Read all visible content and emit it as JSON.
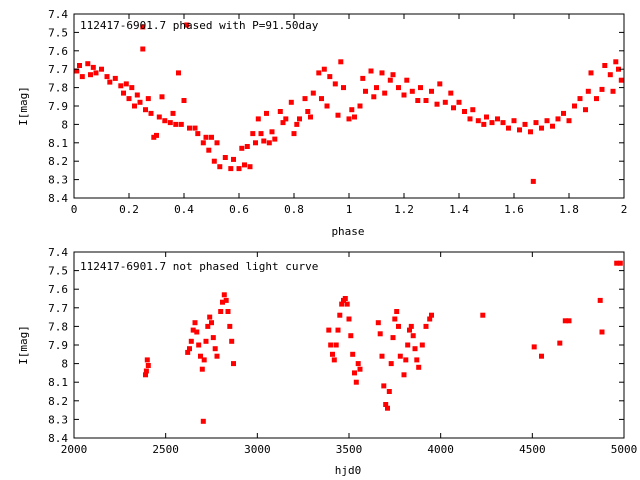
{
  "chart_data": [
    {
      "type": "scatter",
      "title": "112417-6901.7 phased with P=91.50day",
      "xlabel": "phase",
      "ylabel": "I[mag]",
      "xlim": [
        0,
        2
      ],
      "ylim": [
        8.4,
        7.4
      ],
      "y_inverted": true,
      "x_ticks": [
        "0",
        "0.2",
        "0.4",
        "0.6",
        "0.8",
        "1",
        "1.2",
        "1.4",
        "1.6",
        "1.8",
        "2"
      ],
      "y_ticks": [
        "7.4",
        "7.5",
        "7.6",
        "7.7",
        "7.8",
        "7.9",
        "8",
        "8.1",
        "8.2",
        "8.3",
        "8.4"
      ],
      "marker_color": "#ff0000",
      "series": [
        {
          "points": [
            [
              0.01,
              7.71
            ],
            [
              0.02,
              7.68
            ],
            [
              0.03,
              7.74
            ],
            [
              0.05,
              7.67
            ],
            [
              0.06,
              7.73
            ],
            [
              0.07,
              7.69
            ],
            [
              0.08,
              7.72
            ],
            [
              0.1,
              7.7
            ],
            [
              0.12,
              7.74
            ],
            [
              0.13,
              7.77
            ],
            [
              0.15,
              7.75
            ],
            [
              0.17,
              7.79
            ],
            [
              0.18,
              7.83
            ],
            [
              0.19,
              7.78
            ],
            [
              0.2,
              7.86
            ],
            [
              0.21,
              7.8
            ],
            [
              0.22,
              7.9
            ],
            [
              0.23,
              7.84
            ],
            [
              0.24,
              7.88
            ],
            [
              0.25,
              7.59
            ],
            [
              0.25,
              7.47
            ],
            [
              0.26,
              7.92
            ],
            [
              0.27,
              7.86
            ],
            [
              0.28,
              7.94
            ],
            [
              0.29,
              8.07
            ],
            [
              0.3,
              8.06
            ],
            [
              0.31,
              7.96
            ],
            [
              0.32,
              7.85
            ],
            [
              0.33,
              7.98
            ],
            [
              0.35,
              7.99
            ],
            [
              0.36,
              7.94
            ],
            [
              0.37,
              8.0
            ],
            [
              0.38,
              7.72
            ],
            [
              0.39,
              8.0
            ],
            [
              0.4,
              7.87
            ],
            [
              0.41,
              7.46
            ],
            [
              0.42,
              8.02
            ],
            [
              0.44,
              8.02
            ],
            [
              0.45,
              8.05
            ],
            [
              0.47,
              8.1
            ],
            [
              0.48,
              8.07
            ],
            [
              0.49,
              8.14
            ],
            [
              0.5,
              8.07
            ],
            [
              0.51,
              8.2
            ],
            [
              0.52,
              8.1
            ],
            [
              0.53,
              8.23
            ],
            [
              0.55,
              8.18
            ],
            [
              0.57,
              8.24
            ],
            [
              0.58,
              8.19
            ],
            [
              0.6,
              8.24
            ],
            [
              0.61,
              8.13
            ],
            [
              0.62,
              8.22
            ],
            [
              0.63,
              8.12
            ],
            [
              0.64,
              8.23
            ],
            [
              0.65,
              8.05
            ],
            [
              0.66,
              8.1
            ],
            [
              0.67,
              7.97
            ],
            [
              0.68,
              8.05
            ],
            [
              0.69,
              8.09
            ],
            [
              0.7,
              7.94
            ],
            [
              0.71,
              8.1
            ],
            [
              0.72,
              8.04
            ],
            [
              0.73,
              8.08
            ],
            [
              0.75,
              7.93
            ],
            [
              0.76,
              7.99
            ],
            [
              0.77,
              7.97
            ],
            [
              0.79,
              7.88
            ],
            [
              0.8,
              8.05
            ],
            [
              0.81,
              8.0
            ],
            [
              0.82,
              7.97
            ],
            [
              0.84,
              7.86
            ],
            [
              0.85,
              7.93
            ],
            [
              0.86,
              7.96
            ],
            [
              0.87,
              7.83
            ],
            [
              0.89,
              7.72
            ],
            [
              0.9,
              7.86
            ],
            [
              0.91,
              7.7
            ],
            [
              0.92,
              7.9
            ],
            [
              0.93,
              7.74
            ],
            [
              0.95,
              7.78
            ],
            [
              0.96,
              7.95
            ],
            [
              0.97,
              7.66
            ],
            [
              0.98,
              7.8
            ],
            [
              1.0,
              7.97
            ],
            [
              1.01,
              7.92
            ],
            [
              1.02,
              7.96
            ],
            [
              1.04,
              7.9
            ],
            [
              1.05,
              7.75
            ],
            [
              1.06,
              7.82
            ],
            [
              1.08,
              7.71
            ],
            [
              1.09,
              7.85
            ],
            [
              1.1,
              7.8
            ],
            [
              1.12,
              7.72
            ],
            [
              1.13,
              7.83
            ],
            [
              1.15,
              7.76
            ],
            [
              1.16,
              7.73
            ],
            [
              1.18,
              7.8
            ],
            [
              1.2,
              7.84
            ],
            [
              1.21,
              7.76
            ],
            [
              1.23,
              7.82
            ],
            [
              1.25,
              7.87
            ],
            [
              1.26,
              7.8
            ],
            [
              1.28,
              7.87
            ],
            [
              1.3,
              7.82
            ],
            [
              1.32,
              7.89
            ],
            [
              1.33,
              7.78
            ],
            [
              1.35,
              7.88
            ],
            [
              1.37,
              7.83
            ],
            [
              1.38,
              7.91
            ],
            [
              1.4,
              7.88
            ],
            [
              1.42,
              7.93
            ],
            [
              1.44,
              7.97
            ],
            [
              1.45,
              7.92
            ],
            [
              1.47,
              7.98
            ],
            [
              1.49,
              8.0
            ],
            [
              1.5,
              7.96
            ],
            [
              1.52,
              7.99
            ],
            [
              1.54,
              7.97
            ],
            [
              1.56,
              7.99
            ],
            [
              1.58,
              8.02
            ],
            [
              1.6,
              7.98
            ],
            [
              1.62,
              8.03
            ],
            [
              1.64,
              8.0
            ],
            [
              1.66,
              8.04
            ],
            [
              1.67,
              8.31
            ],
            [
              1.68,
              7.99
            ],
            [
              1.7,
              8.02
            ],
            [
              1.72,
              7.98
            ],
            [
              1.74,
              8.01
            ],
            [
              1.76,
              7.97
            ],
            [
              1.78,
              7.94
            ],
            [
              1.8,
              7.98
            ],
            [
              1.82,
              7.9
            ],
            [
              1.84,
              7.86
            ],
            [
              1.86,
              7.92
            ],
            [
              1.87,
              7.82
            ],
            [
              1.88,
              7.72
            ],
            [
              1.9,
              7.86
            ],
            [
              1.92,
              7.81
            ],
            [
              1.93,
              7.68
            ],
            [
              1.95,
              7.73
            ],
            [
              1.96,
              7.82
            ],
            [
              1.97,
              7.66
            ],
            [
              1.98,
              7.7
            ],
            [
              1.99,
              7.76
            ]
          ]
        }
      ]
    },
    {
      "type": "scatter",
      "title": "112417-6901.7 not phased light curve",
      "xlabel": "hjd0",
      "ylabel": "I[mag]",
      "xlim": [
        2000,
        5000
      ],
      "ylim": [
        8.4,
        7.4
      ],
      "y_inverted": true,
      "x_ticks": [
        "2000",
        "2500",
        "3000",
        "3500",
        "4000",
        "4500",
        "5000"
      ],
      "y_ticks": [
        "7.4",
        "7.5",
        "7.6",
        "7.7",
        "7.8",
        "7.9",
        "8",
        "8.1",
        "8.2",
        "8.3",
        "8.4"
      ],
      "marker_color": "#ff0000",
      "series": [
        {
          "points": [
            [
              2390,
              8.06
            ],
            [
              2395,
              8.04
            ],
            [
              2400,
              7.98
            ],
            [
              2405,
              8.01
            ],
            [
              2620,
              7.94
            ],
            [
              2630,
              7.92
            ],
            [
              2640,
              7.88
            ],
            [
              2650,
              7.82
            ],
            [
              2660,
              7.78
            ],
            [
              2670,
              7.83
            ],
            [
              2680,
              7.9
            ],
            [
              2690,
              7.96
            ],
            [
              2700,
              8.03
            ],
            [
              2705,
              8.31
            ],
            [
              2710,
              7.98
            ],
            [
              2720,
              7.88
            ],
            [
              2730,
              7.8
            ],
            [
              2740,
              7.75
            ],
            [
              2750,
              7.78
            ],
            [
              2760,
              7.86
            ],
            [
              2770,
              7.92
            ],
            [
              2780,
              7.96
            ],
            [
              2800,
              7.72
            ],
            [
              2810,
              7.67
            ],
            [
              2820,
              7.63
            ],
            [
              2830,
              7.66
            ],
            [
              2840,
              7.72
            ],
            [
              2850,
              7.8
            ],
            [
              2860,
              7.88
            ],
            [
              2870,
              8.0
            ],
            [
              3390,
              7.82
            ],
            [
              3400,
              7.9
            ],
            [
              3410,
              7.95
            ],
            [
              3420,
              7.98
            ],
            [
              3430,
              7.9
            ],
            [
              3440,
              7.82
            ],
            [
              3450,
              7.74
            ],
            [
              3460,
              7.68
            ],
            [
              3470,
              7.66
            ],
            [
              3480,
              7.65
            ],
            [
              3490,
              7.68
            ],
            [
              3500,
              7.76
            ],
            [
              3510,
              7.85
            ],
            [
              3520,
              7.95
            ],
            [
              3530,
              8.05
            ],
            [
              3540,
              8.1
            ],
            [
              3550,
              8.0
            ],
            [
              3560,
              8.03
            ],
            [
              3660,
              7.78
            ],
            [
              3670,
              7.84
            ],
            [
              3680,
              7.96
            ],
            [
              3690,
              8.12
            ],
            [
              3700,
              8.22
            ],
            [
              3710,
              8.24
            ],
            [
              3720,
              8.15
            ],
            [
              3730,
              8.0
            ],
            [
              3740,
              7.86
            ],
            [
              3750,
              7.76
            ],
            [
              3760,
              7.72
            ],
            [
              3770,
              7.8
            ],
            [
              3780,
              7.96
            ],
            [
              3800,
              8.06
            ],
            [
              3810,
              7.98
            ],
            [
              3820,
              7.9
            ],
            [
              3830,
              7.82
            ],
            [
              3840,
              7.8
            ],
            [
              3850,
              7.85
            ],
            [
              3860,
              7.92
            ],
            [
              3870,
              7.98
            ],
            [
              3880,
              8.02
            ],
            [
              3900,
              7.9
            ],
            [
              3920,
              7.8
            ],
            [
              3940,
              7.76
            ],
            [
              3950,
              7.74
            ],
            [
              4230,
              7.74
            ],
            [
              4510,
              7.91
            ],
            [
              4550,
              7.96
            ],
            [
              4650,
              7.89
            ],
            [
              4680,
              7.77
            ],
            [
              4700,
              7.77
            ],
            [
              4870,
              7.66
            ],
            [
              4880,
              7.83
            ],
            [
              4960,
              7.46
            ],
            [
              4980,
              7.46
            ]
          ]
        }
      ]
    }
  ]
}
